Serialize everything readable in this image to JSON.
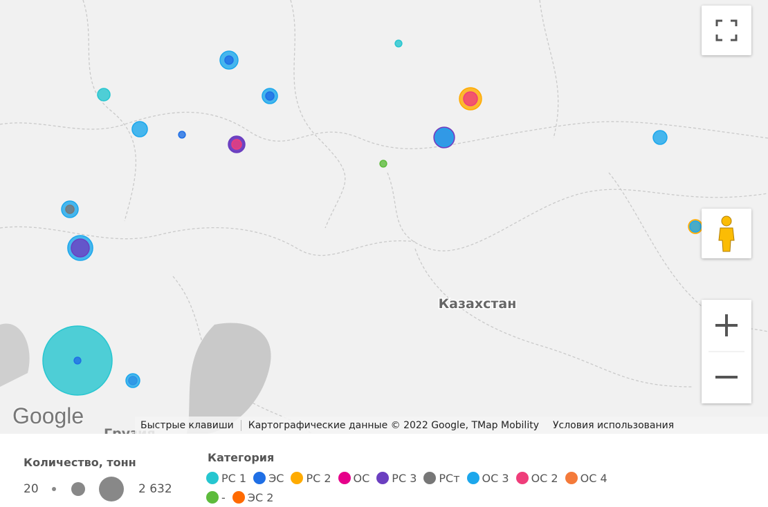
{
  "map": {
    "labels": [
      "Казахстан",
      "Грузия"
    ]
  },
  "attribution": {
    "logo": "Google",
    "shortcuts": "Быстрые клавиши",
    "data": "Картографические данные © 2022 Google, TMap Mobility",
    "terms": "Условия использования"
  },
  "legend": {
    "size_title": "Количество, тонн",
    "size_min": 20,
    "size_max": {
      "value": 2632,
      "label": "2 632"
    },
    "category_title": "Категория",
    "categories": [
      {
        "name": "РС 1",
        "color": "#26c6d0"
      },
      {
        "name": "ЭС",
        "color": "#1f6fe5"
      },
      {
        "name": "РС 2",
        "color": "#ffab00"
      },
      {
        "name": "ОС",
        "color": "#e6008a"
      },
      {
        "name": "РС 3",
        "color": "#6b3fc0"
      },
      {
        "name": "РСт",
        "color": "#777777"
      },
      {
        "name": "ОС 3",
        "color": "#1ca7ec"
      },
      {
        "name": "ОС 2",
        "color": "#ef3d7a"
      },
      {
        "name": "ОС 4",
        "color": "#f47a3a"
      },
      {
        "name": "-",
        "color": "#5dbb3c"
      },
      {
        "name": "ЭС 2",
        "color": "#ff6a00"
      }
    ]
  },
  "markers": [
    {
      "category": "РС 1",
      "quantity": 2632
    },
    {
      "category": "ЭС",
      "quantity": 21
    },
    {
      "category": "ОС 3",
      "quantity": 264
    },
    {
      "category": "РС 3",
      "quantity": 120
    },
    {
      "category": "РС 2",
      "quantity": 198
    },
    {
      "category": "ОС 2",
      "quantity": 64
    },
    {
      "category": "РС 3",
      "quantity": 167
    },
    {
      "category": "ОС 3",
      "quantity": 120
    },
    {
      "category": "ОС 3",
      "quantity": 120
    },
    {
      "category": "РС 3",
      "quantity": 99
    },
    {
      "category": "ЭС",
      "quantity": 25
    },
    {
      "category": "ОС 3",
      "quantity": 99
    },
    {
      "category": "РСт",
      "quantity": 25
    },
    {
      "category": "ОС 3",
      "quantity": 81
    },
    {
      "category": "ЭС",
      "quantity": 25
    },
    {
      "category": "ОС 3",
      "quantity": 81
    },
    {
      "category": "РС 3",
      "quantity": 81
    },
    {
      "category": "ОС 2",
      "quantity": 31
    },
    {
      "category": "ОС 3",
      "quantity": 64
    },
    {
      "category": "РС 3",
      "quantity": 25
    },
    {
      "category": "ОС 3",
      "quantity": 64
    },
    {
      "category": "РС 2",
      "quantity": 64
    },
    {
      "category": "ОС 3",
      "quantity": 40
    },
    {
      "category": "РС 1",
      "quantity": 51
    },
    {
      "category": "ЭС",
      "quantity": 21
    },
    {
      "category": "РС 1",
      "quantity": 21
    },
    {
      "category": "-",
      "quantity": 21
    }
  ]
}
